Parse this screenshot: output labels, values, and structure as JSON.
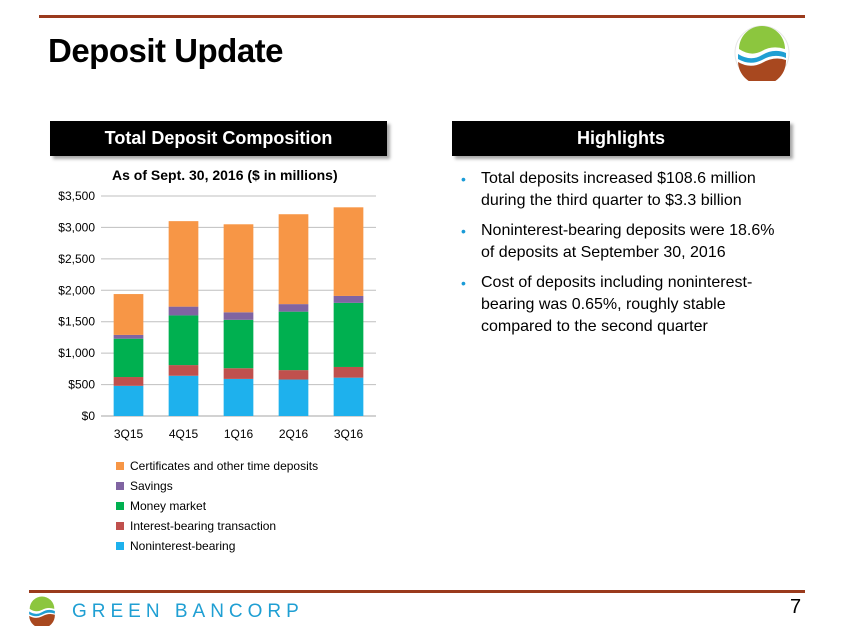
{
  "page": {
    "title": "Deposit Update",
    "page_number": "7",
    "brand_name": "GREEN BANCORP"
  },
  "banners": {
    "left": "Total Deposit Composition",
    "right": "Highlights"
  },
  "highlights": [
    "Total deposits increased $108.6 million during the third quarter to $3.3 billion",
    "Noninterest-bearing deposits were 18.6% of deposits at September 30, 2016",
    "Cost of deposits including noninterest-bearing was 0.65%, roughly stable compared to the second quarter"
  ],
  "colors": {
    "accent_rule": "#9a3a1c",
    "bullet": "#1a9bd7",
    "brand": "#1f9fd3"
  },
  "chart_data": {
    "type": "bar",
    "stacked": true,
    "title": "As of Sept. 30, 2016 ($ in millions)",
    "categories": [
      "3Q15",
      "4Q15",
      "1Q16",
      "2Q16",
      "3Q16"
    ],
    "ylim": [
      0,
      3500
    ],
    "yticks": [
      0,
      500,
      1000,
      1500,
      2000,
      2500,
      3000,
      3500
    ],
    "ytick_labels": [
      "$0",
      "$500",
      "$1,000",
      "$1,500",
      "$2,000",
      "$2,500",
      "$3,000",
      "$3,500"
    ],
    "grid": true,
    "legend_position": "bottom",
    "series": [
      {
        "name": "Noninterest-bearing",
        "color": "#1eb1ed",
        "values": [
          480,
          640,
          590,
          580,
          610
        ]
      },
      {
        "name": "Interest-bearing transaction",
        "color": "#c0504d",
        "values": [
          140,
          170,
          170,
          150,
          170
        ]
      },
      {
        "name": "Money market",
        "color": "#00b050",
        "values": [
          610,
          790,
          770,
          930,
          1020
        ]
      },
      {
        "name": "Savings",
        "color": "#8064a2",
        "values": [
          60,
          140,
          120,
          120,
          110
        ]
      },
      {
        "name": "Certificates and other time deposits",
        "color": "#f79646",
        "values": [
          650,
          1360,
          1400,
          1430,
          1410
        ]
      }
    ],
    "legend_order": [
      "Certificates and other time deposits",
      "Savings",
      "Money market",
      "Interest-bearing transaction",
      "Noninterest-bearing"
    ]
  }
}
